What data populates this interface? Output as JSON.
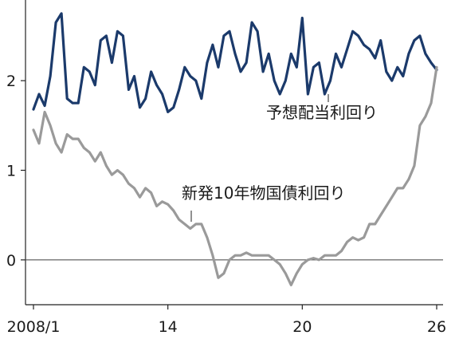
{
  "chart_data": {
    "type": "line",
    "title": "",
    "xlabel": "",
    "ylabel": "",
    "xlim": [
      2008.0,
      2026.0
    ],
    "ylim": [
      -0.5,
      2.9
    ],
    "grid": false,
    "x_ticks": [
      {
        "value": 2008.0,
        "label": "2008/1"
      },
      {
        "value": 2014.0,
        "label": "14"
      },
      {
        "value": 2020.0,
        "label": "20"
      },
      {
        "value": 2026.0,
        "label": "26"
      }
    ],
    "y_ticks": [
      {
        "value": 0,
        "label": "0"
      },
      {
        "value": 1,
        "label": "1"
      },
      {
        "value": 2,
        "label": "2"
      }
    ],
    "zero_line": true,
    "series": [
      {
        "name": "予想配当利回り",
        "color": "#1b3a6b",
        "x": [
          2008.0,
          2008.25,
          2008.5,
          2008.75,
          2009.0,
          2009.25,
          2009.5,
          2009.75,
          2010.0,
          2010.25,
          2010.5,
          2010.75,
          2011.0,
          2011.25,
          2011.5,
          2011.75,
          2012.0,
          2012.25,
          2012.5,
          2012.75,
          2013.0,
          2013.25,
          2013.5,
          2013.75,
          2014.0,
          2014.25,
          2014.5,
          2014.75,
          2015.0,
          2015.25,
          2015.5,
          2015.75,
          2016.0,
          2016.25,
          2016.5,
          2016.75,
          2017.0,
          2017.25,
          2017.5,
          2017.75,
          2018.0,
          2018.25,
          2018.5,
          2018.75,
          2019.0,
          2019.25,
          2019.5,
          2019.75,
          2020.0,
          2020.25,
          2020.5,
          2020.75,
          2021.0,
          2021.25,
          2021.5,
          2021.75,
          2022.0,
          2022.25,
          2022.5,
          2022.75,
          2023.0,
          2023.25,
          2023.5,
          2023.75,
          2024.0,
          2024.25,
          2024.5,
          2024.75,
          2025.0,
          2025.25,
          2025.5,
          2025.75,
          2026.0
        ],
        "values": [
          1.68,
          1.85,
          1.72,
          2.05,
          2.65,
          2.75,
          1.8,
          1.75,
          1.75,
          2.15,
          2.1,
          1.95,
          2.45,
          2.5,
          2.2,
          2.55,
          2.5,
          1.9,
          2.05,
          1.7,
          1.8,
          2.1,
          1.95,
          1.85,
          1.65,
          1.7,
          1.9,
          2.15,
          2.05,
          2.0,
          1.8,
          2.2,
          2.4,
          2.15,
          2.5,
          2.55,
          2.3,
          2.1,
          2.2,
          2.65,
          2.55,
          2.1,
          2.3,
          2.0,
          1.85,
          2.0,
          2.3,
          2.15,
          2.7,
          1.85,
          2.15,
          2.2,
          1.85,
          2.0,
          2.3,
          2.15,
          2.35,
          2.55,
          2.5,
          2.4,
          2.35,
          2.25,
          2.45,
          2.1,
          2.0,
          2.15,
          2.05,
          2.3,
          2.45,
          2.5,
          2.3,
          2.2,
          2.12
        ]
      },
      {
        "name": "新発10年物国債利回り",
        "color": "#9a9a9a",
        "x": [
          2008.0,
          2008.25,
          2008.5,
          2008.75,
          2009.0,
          2009.25,
          2009.5,
          2009.75,
          2010.0,
          2010.25,
          2010.5,
          2010.75,
          2011.0,
          2011.25,
          2011.5,
          2011.75,
          2012.0,
          2012.25,
          2012.5,
          2012.75,
          2013.0,
          2013.25,
          2013.5,
          2013.75,
          2014.0,
          2014.25,
          2014.5,
          2014.75,
          2015.0,
          2015.25,
          2015.5,
          2015.75,
          2016.0,
          2016.25,
          2016.5,
          2016.75,
          2017.0,
          2017.25,
          2017.5,
          2017.75,
          2018.0,
          2018.25,
          2018.5,
          2018.75,
          2019.0,
          2019.25,
          2019.5,
          2019.75,
          2020.0,
          2020.25,
          2020.5,
          2020.75,
          2021.0,
          2021.25,
          2021.5,
          2021.75,
          2022.0,
          2022.25,
          2022.5,
          2022.75,
          2023.0,
          2023.25,
          2023.5,
          2023.75,
          2024.0,
          2024.25,
          2024.5,
          2024.75,
          2025.0,
          2025.25,
          2025.5,
          2025.75,
          2026.0
        ],
        "values": [
          1.45,
          1.3,
          1.65,
          1.5,
          1.3,
          1.2,
          1.4,
          1.35,
          1.35,
          1.25,
          1.2,
          1.1,
          1.2,
          1.05,
          0.95,
          1.0,
          0.95,
          0.85,
          0.8,
          0.7,
          0.8,
          0.75,
          0.6,
          0.65,
          0.62,
          0.55,
          0.45,
          0.4,
          0.35,
          0.4,
          0.4,
          0.25,
          0.05,
          -0.2,
          -0.15,
          0.0,
          0.05,
          0.05,
          0.08,
          0.05,
          0.05,
          0.05,
          0.05,
          0.0,
          -0.05,
          -0.15,
          -0.28,
          -0.15,
          -0.05,
          0.0,
          0.02,
          0.0,
          0.05,
          0.05,
          0.05,
          0.1,
          0.2,
          0.25,
          0.22,
          0.25,
          0.4,
          0.4,
          0.5,
          0.6,
          0.7,
          0.8,
          0.8,
          0.9,
          1.05,
          1.5,
          1.6,
          1.75,
          2.15
        ]
      }
    ],
    "annotations": [
      {
        "text": "予想配当利回り",
        "series": 0
      },
      {
        "text": "新発10年物国債利回り",
        "series": 1
      }
    ]
  }
}
